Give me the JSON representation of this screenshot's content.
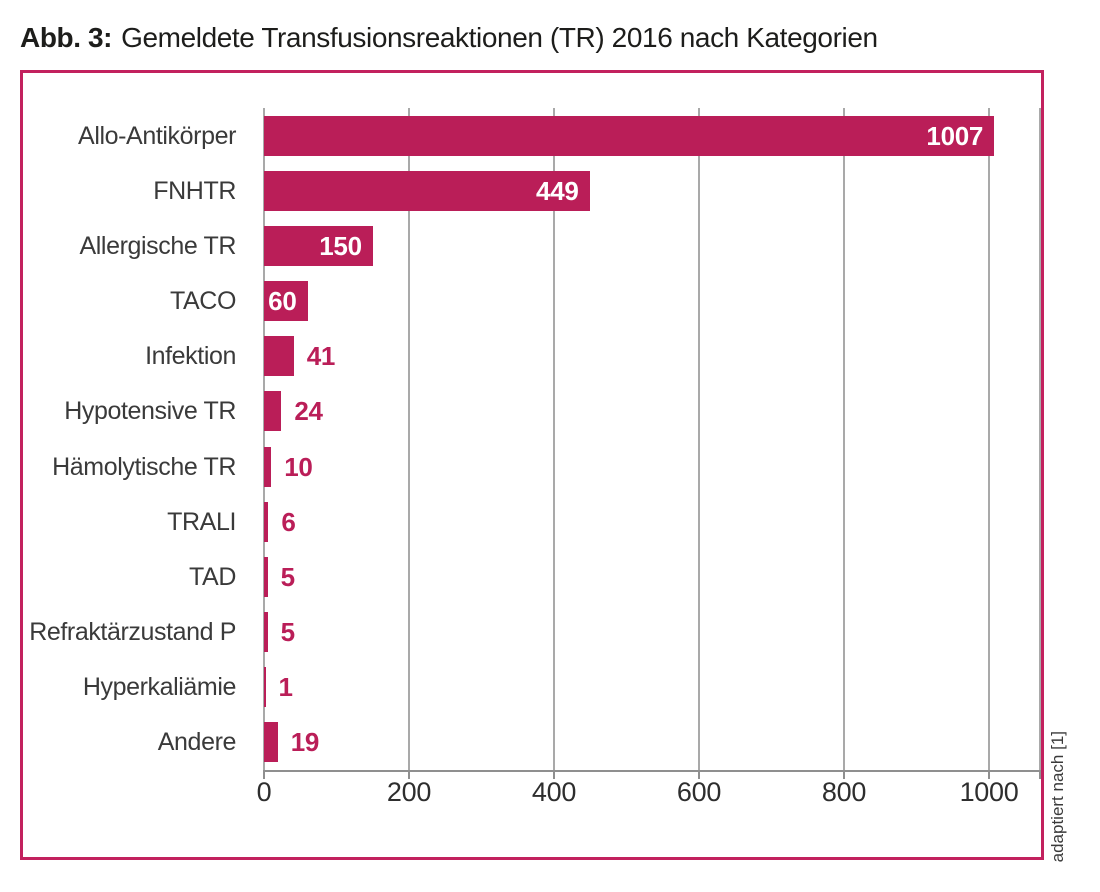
{
  "title": {
    "prefix": "Abb. 3:",
    "text": "Gemeldete Transfusionsreaktionen (TR) 2016 nach Kategorien"
  },
  "source_note": "adaptiert nach [1]",
  "colors": {
    "bar": "#ba1e58",
    "frame_border": "#c2215e",
    "gridline": "#a9a9a9",
    "axis": "#8f8f8f",
    "category_label": "#3a3a3a",
    "tick_label": "#2e2e2e",
    "value_inside": "#ffffff",
    "value_outside": "#ba1e58",
    "title_text": "#1d1d1b"
  },
  "chart_data": {
    "type": "bar",
    "orientation": "horizontal",
    "title": "Gemeldete Transfusionsreaktionen (TR) 2016 nach Kategorien",
    "categories": [
      "Allo-Antikörper",
      "FNHTR",
      "Allergische TR",
      "TACO",
      "Infektion",
      "Hypotensive TR",
      "Hämolytische TR",
      "TRALI",
      "TAD",
      "Refraktärzustand P",
      "Hyperkaliämie",
      "Andere"
    ],
    "values": [
      1007,
      449,
      150,
      60,
      41,
      24,
      10,
      6,
      5,
      5,
      1,
      19
    ],
    "x_ticks": [
      0,
      200,
      400,
      600,
      800,
      1000
    ],
    "xlim": [
      0,
      1070
    ],
    "xlabel": "",
    "ylabel": "",
    "grid": true,
    "legend": false,
    "annotation": "adaptiert nach [1]"
  }
}
